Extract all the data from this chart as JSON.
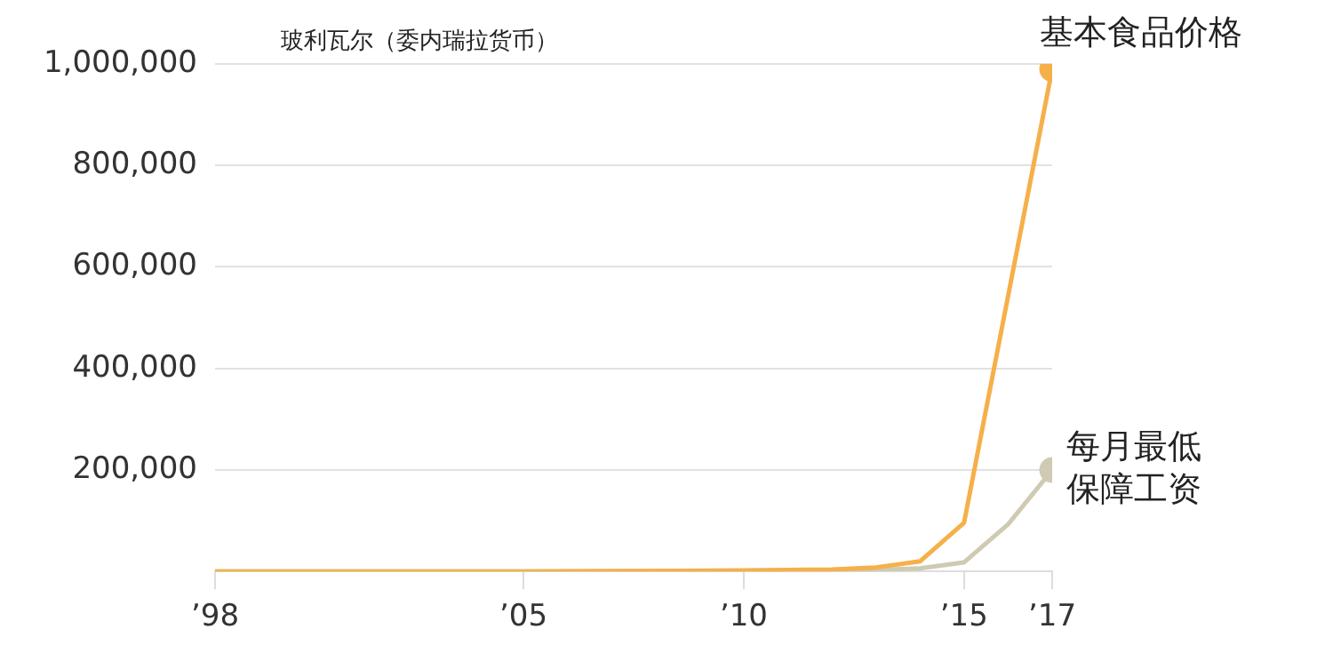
{
  "chart_data": {
    "type": "line",
    "ylabel": "玻利瓦尔（委内瑞拉货币）",
    "xlim": [
      1998,
      2017
    ],
    "xticks": [
      {
        "value": 1998,
        "label": "’98"
      },
      {
        "value": 2005,
        "label": "’05"
      },
      {
        "value": 2010,
        "label": "’10"
      },
      {
        "value": 2015,
        "label": "’15"
      },
      {
        "value": 2017,
        "label": "’17"
      }
    ],
    "ylim": [
      0,
      1000000
    ],
    "yticks": [
      {
        "value": 200000,
        "label": "200,000"
      },
      {
        "value": 400000,
        "label": "400,000"
      },
      {
        "value": 600000,
        "label": "600,000"
      },
      {
        "value": 800000,
        "label": "800,000"
      },
      {
        "value": 1000000,
        "label": "1,000,000"
      }
    ],
    "grid": "y",
    "legend": false,
    "line_style": "solid",
    "series": [
      {
        "name": "基本食品价格",
        "color": "#f5b04a",
        "x": [
          1998,
          2005,
          2010,
          2012,
          2013,
          2014,
          2015,
          2017
        ],
        "values": [
          0,
          0,
          2000,
          4000,
          8000,
          20000,
          96000,
          990000
        ]
      },
      {
        "name": "每月最低保障工资",
        "color": "#cfcbb3",
        "x": [
          1998,
          2005,
          2010,
          2012,
          2013,
          2014,
          2015,
          2016,
          2017
        ],
        "values": [
          0,
          0,
          1000,
          2000,
          3000,
          6000,
          18000,
          93000,
          200000
        ]
      }
    ]
  }
}
